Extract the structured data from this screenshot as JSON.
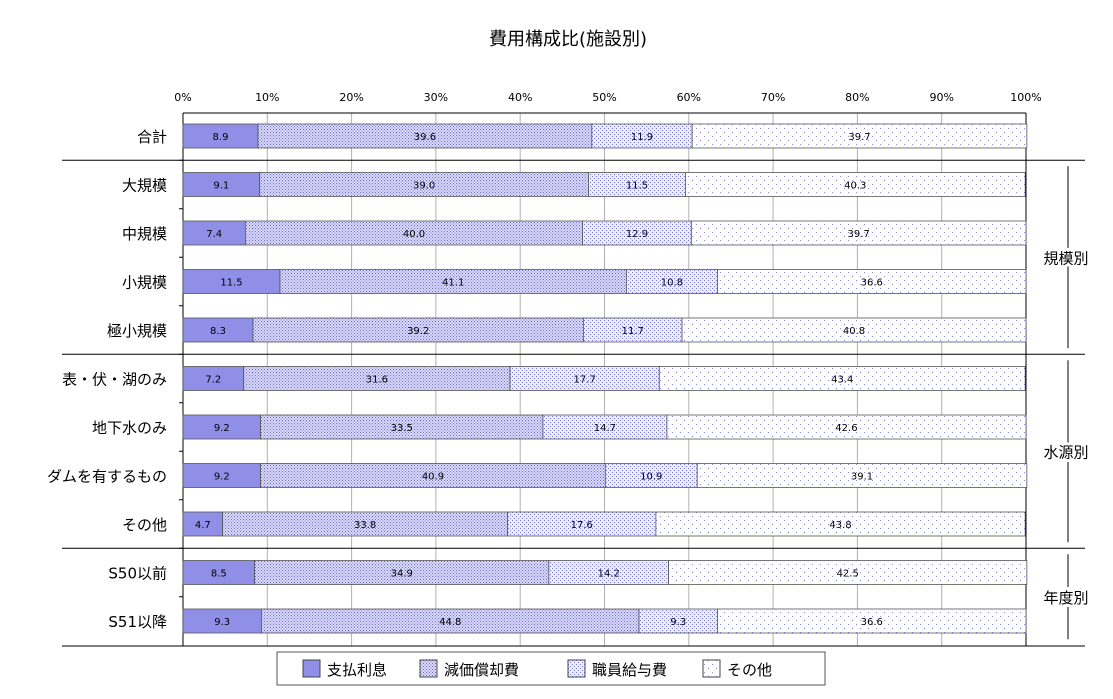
{
  "chart_data": {
    "type": "bar",
    "orientation": "horizontal",
    "stacked": true,
    "title": "費用構成比(施設別)",
    "xlim": [
      0,
      100
    ],
    "x_ticks": [
      "0%",
      "10%",
      "20%",
      "30%",
      "40%",
      "50%",
      "60%",
      "70%",
      "80%",
      "90%",
      "100%"
    ],
    "grid": true,
    "legend_position": "bottom",
    "categories": [
      "合計",
      "大規模",
      "中規模",
      "小規模",
      "極小規模",
      "表・伏・湖のみ",
      "地下水のみ",
      "ダムを有するもの",
      "その他",
      "S50以前",
      "S51以降"
    ],
    "groups": [
      {
        "label": "規模別",
        "from": 1,
        "to": 4
      },
      {
        "label": "水源別",
        "from": 5,
        "to": 8
      },
      {
        "label": "年度別",
        "from": 9,
        "to": 10
      }
    ],
    "series": [
      {
        "name": "支払利息",
        "color": "#8f8fe8",
        "pattern": "solid",
        "values": [
          8.9,
          9.1,
          7.4,
          11.5,
          8.3,
          7.2,
          9.2,
          9.2,
          4.7,
          8.5,
          9.3
        ]
      },
      {
        "name": "減価償却費",
        "color": "#b4b4f0",
        "pattern": "dense-dots",
        "values": [
          39.6,
          39.0,
          40.0,
          41.1,
          39.2,
          31.6,
          33.5,
          40.9,
          33.8,
          34.9,
          44.8
        ]
      },
      {
        "name": "職員給与費",
        "color": "#c8c8f5",
        "pattern": "medium-dots",
        "values": [
          11.9,
          11.5,
          12.9,
          10.8,
          11.7,
          17.7,
          14.7,
          10.9,
          17.6,
          14.2,
          9.3
        ]
      },
      {
        "name": "その他",
        "color": "#e8e8fb",
        "pattern": "sparse-dots",
        "values": [
          39.7,
          40.3,
          39.7,
          36.6,
          40.8,
          43.4,
          42.6,
          39.1,
          43.8,
          42.5,
          36.6
        ]
      }
    ]
  }
}
